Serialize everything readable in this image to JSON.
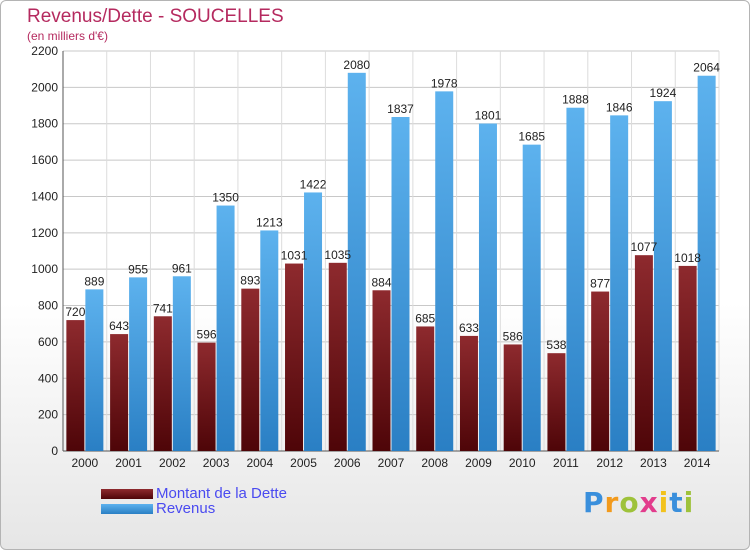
{
  "chart_data": {
    "type": "bar",
    "title": "Revenus/Dette - SOUCELLES",
    "subtitle": "(en milliers d'€)",
    "categories": [
      "2000",
      "2001",
      "2002",
      "2003",
      "2004",
      "2005",
      "2006",
      "2007",
      "2008",
      "2009",
      "2010",
      "2011",
      "2012",
      "2013",
      "2014"
    ],
    "series": [
      {
        "name": "Montant de la Dette",
        "color": "#7a1a1e",
        "values": [
          720,
          643,
          741,
          596,
          893,
          1031,
          1035,
          884,
          685,
          633,
          586,
          538,
          877,
          1077,
          1018
        ],
        "labels": [
          "720",
          "643",
          "741",
          "596",
          "893",
          "1031",
          "1035",
          "884",
          "685",
          "633",
          "586",
          "538",
          "877",
          "1077",
          "1018"
        ]
      },
      {
        "name": "Revenus",
        "color": "#4aa3e6",
        "values": [
          889,
          955,
          961,
          1350,
          1213,
          1422,
          2080,
          1837,
          1978,
          1801,
          1685,
          1888,
          1846,
          1924,
          2064
        ],
        "labels": [
          "889",
          "955",
          "961",
          "1350",
          "1213",
          "1422",
          "2080",
          "1837",
          "1978",
          "1801",
          "1685",
          "1888",
          "1846",
          "1924",
          "2064"
        ]
      }
    ],
    "ylim": [
      0,
      2200
    ],
    "yticks": [
      "0",
      "200",
      "400",
      "600",
      "800",
      "1000",
      "1200",
      "1400",
      "1600",
      "1800",
      "2000",
      "2200"
    ],
    "grid": true,
    "legend": "bottom-left"
  },
  "brand": {
    "letters": [
      "P",
      "r",
      "o",
      "x",
      "i",
      "t",
      "i"
    ],
    "colors": [
      "#3a8fdc",
      "#f29a1c",
      "#9ec23a",
      "#e23c8c",
      "#f2c21c",
      "#3a8fdc",
      "#9ec23a"
    ]
  }
}
